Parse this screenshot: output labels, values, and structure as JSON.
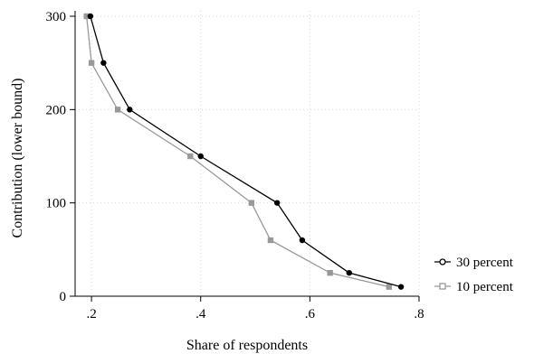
{
  "chart_data": {
    "type": "line",
    "xlabel": "Share of respondents",
    "ylabel": "Contribution (lower bound)",
    "xlim": [
      0.17,
      0.8
    ],
    "ylim": [
      0,
      300
    ],
    "x_ticks": [
      0.2,
      0.4,
      0.6,
      0.8
    ],
    "x_tick_labels": [
      ".2",
      ".4",
      ".6",
      ".8"
    ],
    "y_ticks": [
      0,
      100,
      200,
      300
    ],
    "y_tick_labels": [
      "0",
      "100",
      "200",
      "300"
    ],
    "grid": "dotted",
    "legend_position": "right",
    "series": [
      {
        "name": "30 percent",
        "color": "#000000",
        "marker": "circle",
        "points": [
          {
            "x": 0.198,
            "y": 300
          },
          {
            "x": 0.222,
            "y": 250
          },
          {
            "x": 0.27,
            "y": 200
          },
          {
            "x": 0.4,
            "y": 150
          },
          {
            "x": 0.54,
            "y": 100
          },
          {
            "x": 0.586,
            "y": 60
          },
          {
            "x": 0.672,
            "y": 25
          },
          {
            "x": 0.767,
            "y": 10
          }
        ]
      },
      {
        "name": "10 percent",
        "color": "#999999",
        "marker": "square",
        "points": [
          {
            "x": 0.191,
            "y": 300
          },
          {
            "x": 0.2,
            "y": 250
          },
          {
            "x": 0.248,
            "y": 200
          },
          {
            "x": 0.381,
            "y": 150
          },
          {
            "x": 0.493,
            "y": 100
          },
          {
            "x": 0.528,
            "y": 60
          },
          {
            "x": 0.637,
            "y": 25
          },
          {
            "x": 0.745,
            "y": 10
          }
        ]
      }
    ]
  }
}
